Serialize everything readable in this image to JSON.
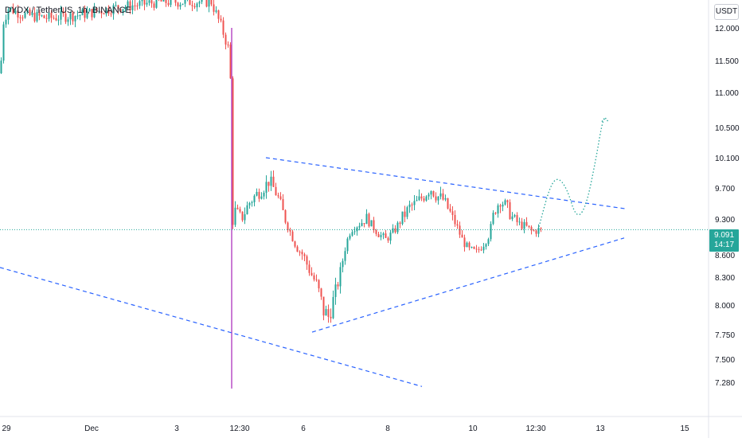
{
  "header": {
    "symbol": "DYDX / TetherUS",
    "interval": "1h",
    "exchange": "BINANCE",
    "separator": ", ",
    "currency": "USDT"
  },
  "last_price": {
    "value": "9.091",
    "countdown": "14:17"
  },
  "colors": {
    "up": "#26a69a",
    "down": "#ef5350",
    "wick_accent": "#b84ec6",
    "trendline": "#2962ff",
    "projection": "#26a69a",
    "axis_text": "#131722"
  },
  "chart_data": {
    "type": "candlestick",
    "y_axis_labels": [
      "12.000",
      "11.500",
      "11.000",
      "10.500",
      "10.100",
      "9.700",
      "9.300",
      "8.600",
      "8.300",
      "8.000",
      "7.750",
      "7.500",
      "7.280"
    ],
    "y_axis_values": [
      12.0,
      11.5,
      11.0,
      10.5,
      10.1,
      9.7,
      9.3,
      8.6,
      8.3,
      8.0,
      7.75,
      7.5,
      7.28
    ],
    "x_axis_labels": [
      "29",
      "Dec",
      "3",
      "12:30",
      "6",
      "8",
      "10",
      "12:30",
      "13",
      "15"
    ],
    "grid": false,
    "price_points": [
      {
        "t": 0,
        "p": 11.3
      },
      {
        "t": 4,
        "p": 12.1
      },
      {
        "t": 10,
        "p": 12.3
      },
      {
        "t": 30,
        "p": 12.2
      },
      {
        "t": 60,
        "p": 12.15
      },
      {
        "t": 100,
        "p": 12.2
      },
      {
        "t": 140,
        "p": 12.3
      },
      {
        "t": 200,
        "p": 12.4
      },
      {
        "t": 265,
        "p": 12.4
      },
      {
        "t": 278,
        "p": 12.0
      },
      {
        "t": 286,
        "p": 11.7
      },
      {
        "t": 289,
        "p": 11.2
      },
      {
        "t": 291,
        "p": 9.2
      },
      {
        "t": 295,
        "p": 9.4
      },
      {
        "t": 303,
        "p": 9.3
      },
      {
        "t": 312,
        "p": 9.5
      },
      {
        "t": 320,
        "p": 9.6
      },
      {
        "t": 330,
        "p": 9.7
      },
      {
        "t": 338,
        "p": 9.8
      },
      {
        "t": 348,
        "p": 9.6
      },
      {
        "t": 356,
        "p": 9.35
      },
      {
        "t": 364,
        "p": 9.05
      },
      {
        "t": 372,
        "p": 8.75
      },
      {
        "t": 380,
        "p": 8.6
      },
      {
        "t": 390,
        "p": 8.35
      },
      {
        "t": 398,
        "p": 8.2
      },
      {
        "t": 406,
        "p": 7.95
      },
      {
        "t": 412,
        "p": 7.9
      },
      {
        "t": 420,
        "p": 8.1
      },
      {
        "t": 428,
        "p": 8.4
      },
      {
        "t": 434,
        "p": 8.8
      },
      {
        "t": 440,
        "p": 9.1
      },
      {
        "t": 450,
        "p": 9.2
      },
      {
        "t": 460,
        "p": 9.3
      },
      {
        "t": 468,
        "p": 9.15
      },
      {
        "t": 476,
        "p": 9.0
      },
      {
        "t": 484,
        "p": 8.9
      },
      {
        "t": 494,
        "p": 9.05
      },
      {
        "t": 504,
        "p": 9.3
      },
      {
        "t": 514,
        "p": 9.45
      },
      {
        "t": 522,
        "p": 9.5
      },
      {
        "t": 532,
        "p": 9.6
      },
      {
        "t": 540,
        "p": 9.7
      },
      {
        "t": 548,
        "p": 9.6
      },
      {
        "t": 556,
        "p": 9.55
      },
      {
        "t": 564,
        "p": 9.4
      },
      {
        "t": 572,
        "p": 9.2
      },
      {
        "t": 580,
        "p": 8.9
      },
      {
        "t": 588,
        "p": 8.7
      },
      {
        "t": 598,
        "p": 8.65
      },
      {
        "t": 606,
        "p": 8.8
      },
      {
        "t": 614,
        "p": 9.0
      },
      {
        "t": 620,
        "p": 9.4
      },
      {
        "t": 628,
        "p": 9.55
      },
      {
        "t": 636,
        "p": 9.45
      },
      {
        "t": 644,
        "p": 9.3
      },
      {
        "t": 652,
        "p": 9.2
      },
      {
        "t": 660,
        "p": 9.15
      },
      {
        "t": 668,
        "p": 9.05
      },
      {
        "t": 676,
        "p": 9.09
      },
      {
        "t": 680,
        "p": 9.09
      }
    ],
    "trendlines": [
      {
        "name": "upper",
        "from": {
          "t": 334,
          "p": 10.1
        },
        "to": {
          "t": 787,
          "p": 9.43
        }
      },
      {
        "name": "lower",
        "from": {
          "t": 392,
          "p": 7.77
        },
        "to": {
          "t": 784,
          "p": 8.93
        }
      },
      {
        "name": "outer",
        "from": {
          "t": 0,
          "p": 8.43
        },
        "to": {
          "t": 530,
          "p": 7.24
        }
      }
    ],
    "projection": [
      {
        "t": 676,
        "p": 9.09
      },
      {
        "t": 690,
        "p": 9.7
      },
      {
        "t": 700,
        "p": 9.85
      },
      {
        "t": 712,
        "p": 9.7
      },
      {
        "t": 724,
        "p": 9.3
      },
      {
        "t": 736,
        "p": 9.45
      },
      {
        "t": 748,
        "p": 10.05
      },
      {
        "t": 756,
        "p": 10.55
      },
      {
        "t": 760,
        "p": 10.64
      }
    ],
    "current_price_line": 9.091
  }
}
